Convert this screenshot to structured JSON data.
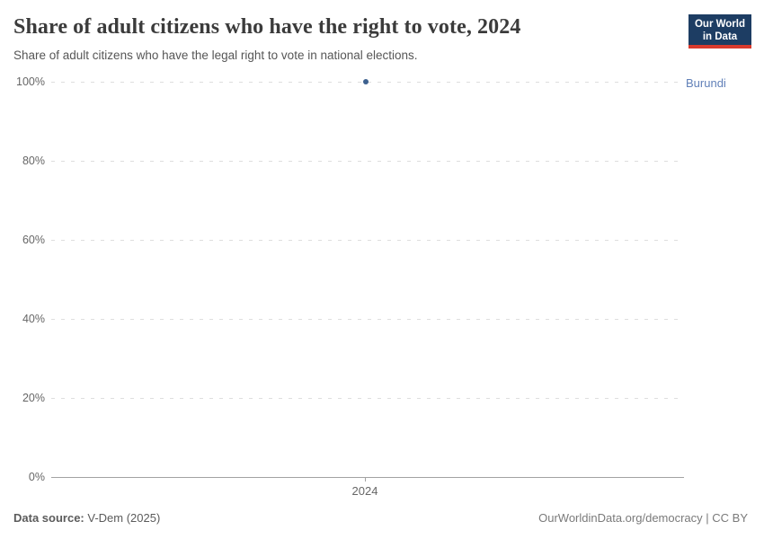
{
  "header": {
    "title": "Share of adult citizens who have the right to vote, 2024",
    "subtitle": "Share of adult citizens who have the legal right to vote in national elections.",
    "logo": {
      "line1": "Our World",
      "line2": "in Data",
      "bg_color": "#1d3d63",
      "accent_color": "#d93a2d"
    }
  },
  "chart_data": {
    "type": "scatter",
    "title": "Share of adult citizens who have the right to vote, 2024",
    "subtitle": "Share of adult citizens who have the legal right to vote in national elections.",
    "series": [
      {
        "name": "Burundi",
        "x": [
          2024
        ],
        "values": [
          100
        ]
      }
    ],
    "xlabel": "",
    "ylabel": "",
    "x_ticks": [
      "2024"
    ],
    "y_ticks": [
      "100%",
      "80%",
      "60%",
      "40%",
      "20%",
      "0%"
    ],
    "ylim": [
      0,
      100
    ],
    "grid": "horizontal-dashed",
    "legend_position": "right-of-point-label",
    "point_color": "#3d618f",
    "entity_label_color": "#6180b8",
    "gridline_color": "#dedede",
    "axis_color": "#a3a3a3"
  },
  "footer": {
    "source_label": "Data source:",
    "source_value": " V-Dem (2025)",
    "credit": "OurWorldinData.org/democracy | CC BY"
  }
}
